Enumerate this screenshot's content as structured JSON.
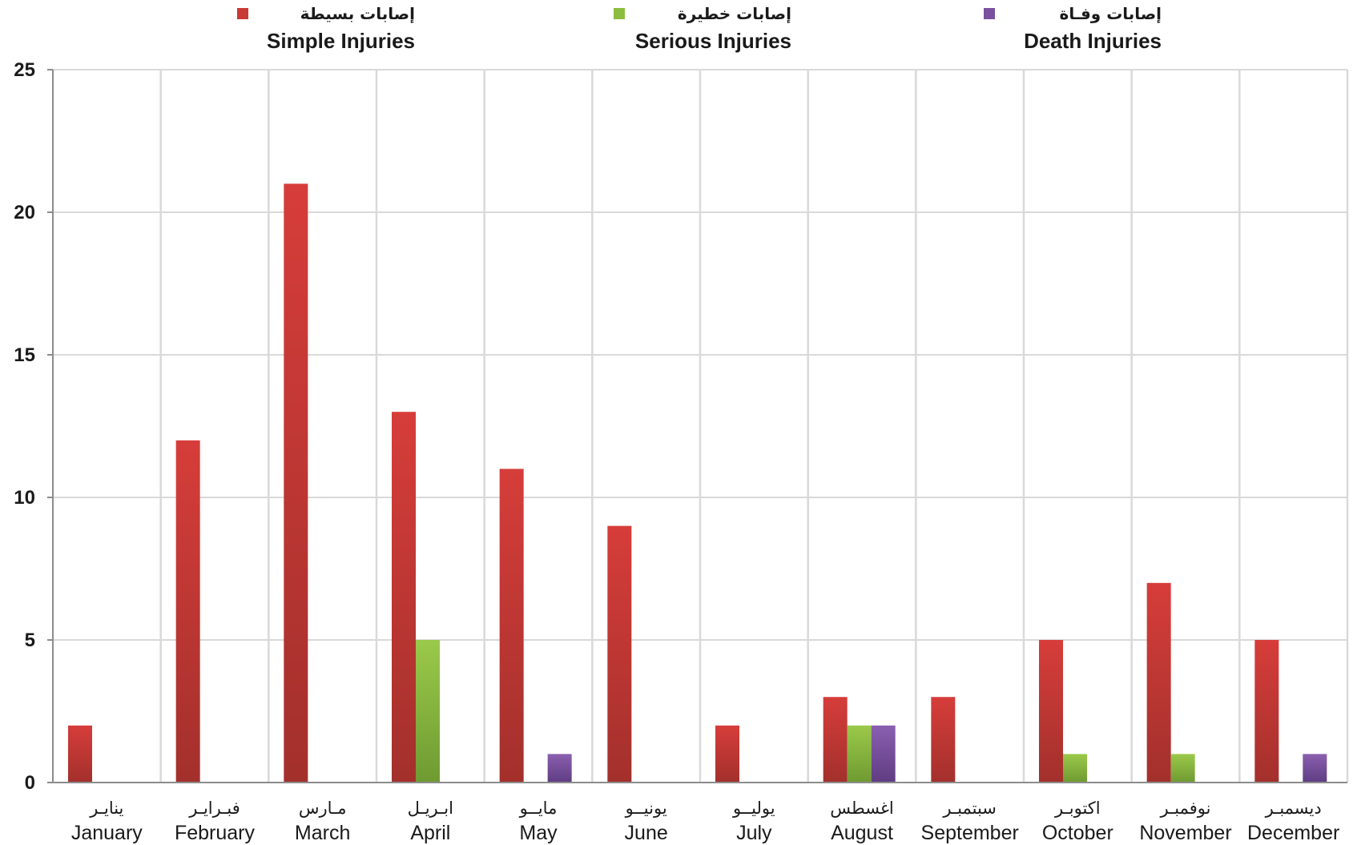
{
  "chart_data": {
    "type": "bar",
    "categories": [
      {
        "ar": "ينايـر",
        "en": "January"
      },
      {
        "ar": "فبـرايـر",
        "en": "February"
      },
      {
        "ar": "مـارس",
        "en": "March"
      },
      {
        "ar": "ابـريـل",
        "en": "April"
      },
      {
        "ar": "مايــو",
        "en": "May"
      },
      {
        "ar": "يونيــو",
        "en": "June"
      },
      {
        "ar": "يوليــو",
        "en": "July"
      },
      {
        "ar": "اغسطس",
        "en": "August"
      },
      {
        "ar": "سبتمبـر",
        "en": "September"
      },
      {
        "ar": "اكتوبـر",
        "en": "October"
      },
      {
        "ar": "نوفمبـر",
        "en": "November"
      },
      {
        "ar": "ديسمبـر",
        "en": "December"
      }
    ],
    "series": [
      {
        "name_ar": "إصابات بسيطة",
        "name": "Simple Injuries",
        "color": "#c0392b",
        "values": [
          2,
          12,
          21,
          13,
          11,
          9,
          2,
          3,
          3,
          5,
          7,
          5
        ]
      },
      {
        "name_ar": "إصابات خطيرة",
        "name": "Serious Injuries",
        "color": "#8cb63c",
        "values": [
          0,
          0,
          0,
          5,
          0,
          0,
          0,
          2,
          0,
          1,
          1,
          0
        ]
      },
      {
        "name_ar": "إصابات وفـاة",
        "name": "Death Injuries",
        "color": "#7b519d",
        "values": [
          0,
          0,
          0,
          0,
          1,
          0,
          0,
          2,
          0,
          0,
          0,
          1
        ]
      }
    ],
    "y_ticks": [
      0,
      5,
      10,
      15,
      20,
      25
    ],
    "ylim": [
      0,
      25
    ],
    "grid": true,
    "legend_position": "top"
  }
}
